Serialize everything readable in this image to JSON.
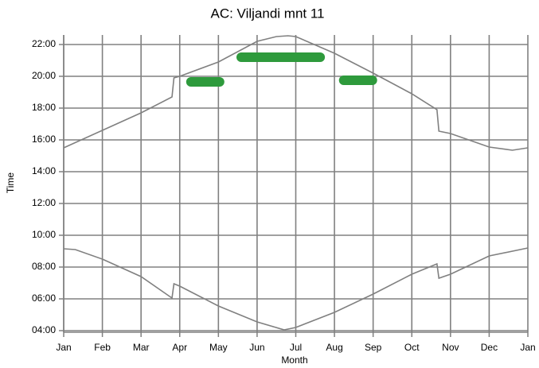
{
  "chart_data": {
    "type": "line",
    "title": "AC: Viljandi mnt 11",
    "xlabel": "Month",
    "ylabel": "Time",
    "xlim": [
      0,
      12
    ],
    "xticks": [
      {
        "value": 0,
        "label": "Jan"
      },
      {
        "value": 1,
        "label": "Feb"
      },
      {
        "value": 2,
        "label": "Mar"
      },
      {
        "value": 3,
        "label": "Apr"
      },
      {
        "value": 4,
        "label": "May"
      },
      {
        "value": 5,
        "label": "Jun"
      },
      {
        "value": 6,
        "label": "Jul"
      },
      {
        "value": 7,
        "label": "Aug"
      },
      {
        "value": 8,
        "label": "Sep"
      },
      {
        "value": 9,
        "label": "Oct"
      },
      {
        "value": 10,
        "label": "Nov"
      },
      {
        "value": 11,
        "label": "Dec"
      },
      {
        "value": 12,
        "label": "Jan"
      }
    ],
    "ylim": [
      3.9,
      22.6
    ],
    "yticks": [
      {
        "value": 4,
        "label": "04:00"
      },
      {
        "value": 6,
        "label": "06:00"
      },
      {
        "value": 8,
        "label": "08:00"
      },
      {
        "value": 10,
        "label": "10:00"
      },
      {
        "value": 12,
        "label": "12:00"
      },
      {
        "value": 14,
        "label": "14:00"
      },
      {
        "value": 16,
        "label": "16:00"
      },
      {
        "value": 18,
        "label": "18:00"
      },
      {
        "value": 20,
        "label": "20:00"
      },
      {
        "value": 22,
        "label": "22:00"
      }
    ],
    "grid": true,
    "series": [
      {
        "color": "#808080",
        "x": [
          0,
          1,
          2,
          2.8,
          2.85,
          3,
          4,
          5,
          5.5,
          5.8,
          6,
          7,
          8,
          9,
          9.65,
          9.7,
          10,
          11,
          11.6,
          12
        ],
        "values": [
          15.5,
          16.6,
          17.7,
          18.7,
          19.9,
          20.0,
          20.9,
          22.2,
          22.5,
          22.55,
          22.5,
          21.45,
          20.2,
          18.9,
          17.9,
          16.55,
          16.4,
          15.55,
          15.35,
          15.5
        ]
      },
      {
        "color": "#808080",
        "x": [
          0,
          0.3,
          1,
          2,
          2.8,
          2.85,
          3,
          4,
          5,
          5.7,
          6,
          7,
          8,
          9,
          9.65,
          9.7,
          10,
          11,
          12
        ],
        "values": [
          9.15,
          9.1,
          8.5,
          7.4,
          6.05,
          6.95,
          6.8,
          5.55,
          4.55,
          4.05,
          4.2,
          5.15,
          6.3,
          7.55,
          8.2,
          7.3,
          7.55,
          8.7,
          9.2
        ]
      }
    ],
    "bands_color": "#2e9a3c",
    "bands": [
      {
        "x": [
          3.29,
          4.03
        ],
        "y": 19.65
      },
      {
        "x": [
          4.59,
          6.63
        ],
        "y": 21.2
      },
      {
        "x": [
          7.24,
          7.98
        ],
        "y": 19.75
      }
    ]
  }
}
